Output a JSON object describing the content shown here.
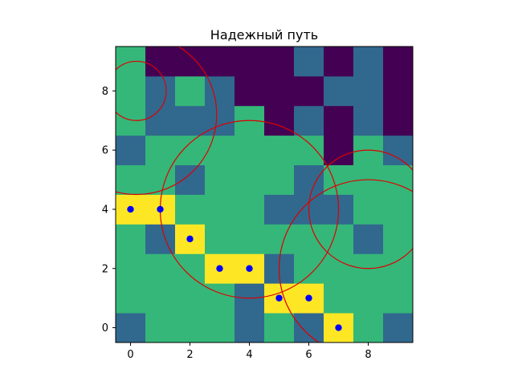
{
  "chart_data": {
    "type": "heatmap",
    "title": "Надежный путь",
    "xlabel": "",
    "ylabel": "",
    "xlim": [
      -0.5,
      9.5
    ],
    "ylim": [
      -0.5,
      9.5
    ],
    "x_ticks": [
      "0",
      "2",
      "4",
      "6",
      "8"
    ],
    "y_ticks": [
      "0",
      "2",
      "4",
      "6",
      "8"
    ],
    "grid": false,
    "legend": "none",
    "colors": {
      "0": "#440154",
      "1": "#31688e",
      "2": "#35b779",
      "3": "#fde725"
    },
    "grid_values_row_y0_to_y9": [
      [
        1,
        2,
        2,
        2,
        1,
        2,
        1,
        3,
        2,
        1
      ],
      [
        2,
        2,
        2,
        2,
        1,
        3,
        3,
        2,
        2,
        2
      ],
      [
        2,
        2,
        2,
        3,
        3,
        1,
        2,
        2,
        2,
        2
      ],
      [
        2,
        1,
        3,
        2,
        2,
        2,
        2,
        2,
        1,
        2
      ],
      [
        3,
        3,
        2,
        2,
        2,
        1,
        1,
        1,
        2,
        2
      ],
      [
        2,
        2,
        1,
        2,
        2,
        2,
        1,
        2,
        2,
        2
      ],
      [
        1,
        2,
        2,
        2,
        2,
        2,
        2,
        0,
        2,
        1
      ],
      [
        2,
        1,
        1,
        1,
        2,
        0,
        1,
        0,
        1,
        0
      ],
      [
        2,
        1,
        2,
        1,
        0,
        0,
        0,
        1,
        1,
        0
      ],
      [
        2,
        0,
        0,
        0,
        0,
        0,
        1,
        0,
        1,
        0
      ]
    ],
    "path_points": {
      "color": "#0000ff",
      "x": [
        0,
        1,
        2,
        3,
        4,
        5,
        6,
        7
      ],
      "y": [
        4,
        4,
        3,
        2,
        2,
        1,
        1,
        0
      ]
    },
    "circles": {
      "color": "#dd0000",
      "items": [
        {
          "cx": 0.2,
          "cy": 8.0,
          "r": 1.0
        },
        {
          "cx": 0.2,
          "cy": 7.2,
          "r": 2.7
        },
        {
          "cx": 4.0,
          "cy": 4.0,
          "r": 3.0
        },
        {
          "cx": 8.0,
          "cy": 4.0,
          "r": 2.0
        },
        {
          "cx": 8.0,
          "cy": 2.0,
          "r": 3.0
        }
      ]
    }
  }
}
